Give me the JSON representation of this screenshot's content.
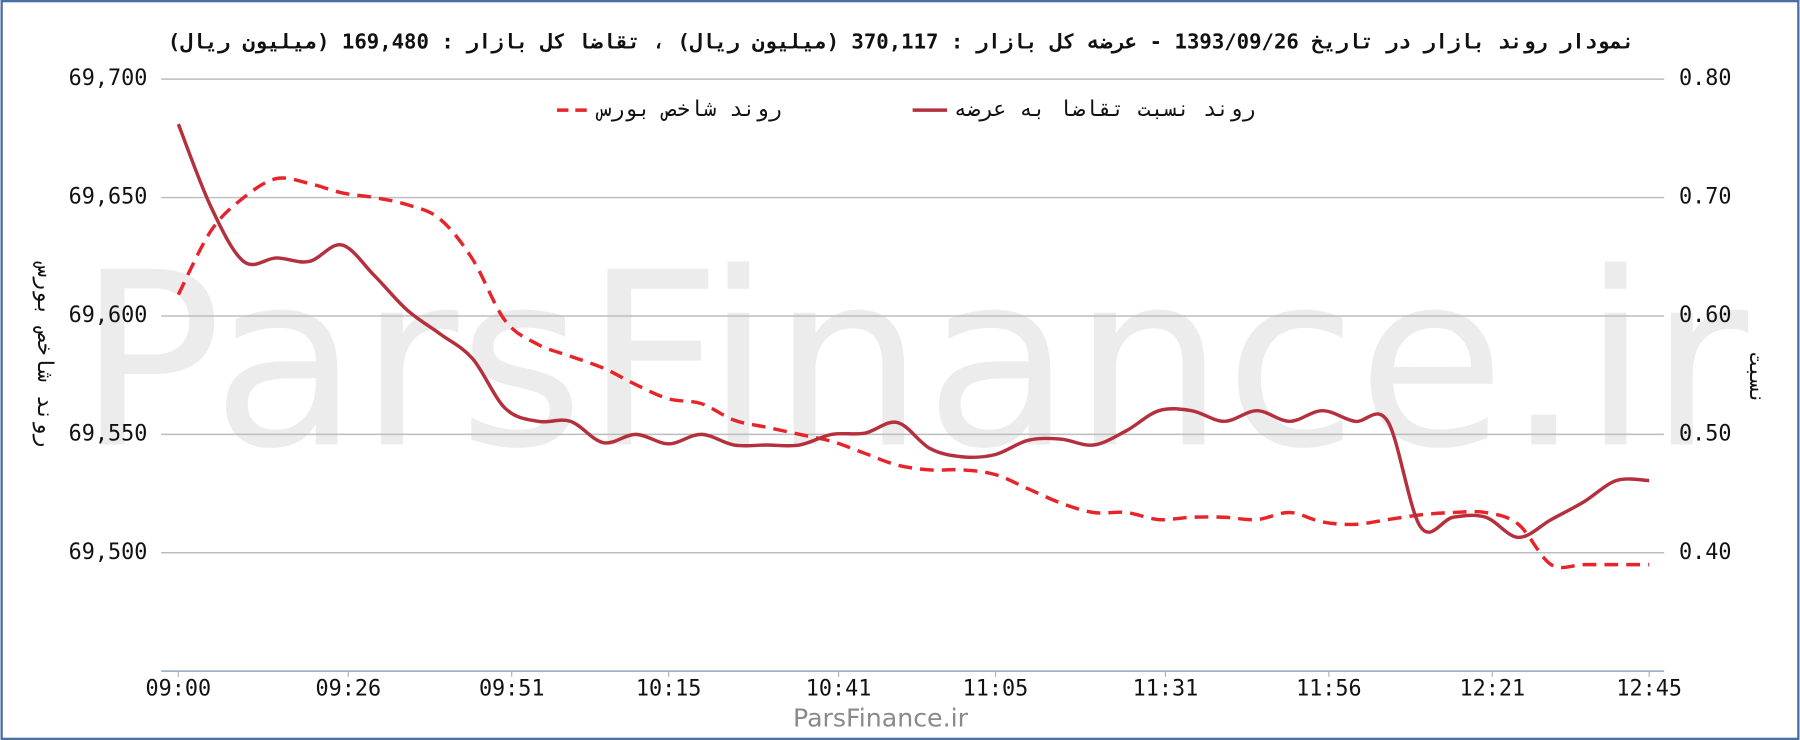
{
  "chart_data": {
    "type": "line",
    "title": "نمودار روند بازار در تاریخ 1393/09/26 - عرضه کل بازار : 370,117 (میلیون ریال) ، تقاضا کل بازار : 169,480 (میلیون ریال)",
    "y_label": "روند شاخص بورس",
    "y2_label": "نسبت",
    "watermark": "ParsFinance.ir",
    "footer": "ParsFinance.ir",
    "legend": "top",
    "x": [
      "09:00",
      "09:05",
      "09:10",
      "09:15",
      "09:20",
      "09:25",
      "09:30",
      "09:35",
      "09:40",
      "09:45",
      "09:50",
      "09:55",
      "10:00",
      "10:05",
      "10:10",
      "10:15",
      "10:20",
      "10:25",
      "10:30",
      "10:35",
      "10:40",
      "10:45",
      "10:50",
      "10:55",
      "11:00",
      "11:05",
      "11:10",
      "11:15",
      "11:20",
      "11:25",
      "11:30",
      "11:35",
      "11:40",
      "11:45",
      "11:50",
      "11:55",
      "12:00",
      "12:05",
      "12:10",
      "12:15",
      "12:20",
      "12:25",
      "12:30",
      "12:35",
      "12:40",
      "12:45"
    ],
    "xlim": [
      "09:00",
      "12:45"
    ],
    "xticks": [
      "09:00",
      "09:26",
      "09:51",
      "10:15",
      "10:41",
      "11:05",
      "11:31",
      "11:56",
      "12:21",
      "12:45"
    ],
    "ylim": [
      69450,
      69700
    ],
    "yticks": [
      {
        "value": 69500,
        "label": "69,500"
      },
      {
        "value": 69550,
        "label": "69,550"
      },
      {
        "value": 69600,
        "label": "69,600"
      },
      {
        "value": 69650,
        "label": "69,650"
      },
      {
        "value": 69700,
        "label": "69,700"
      }
    ],
    "y2lim": [
      0.3,
      0.8
    ],
    "y2ticks": [
      {
        "value": 0.4,
        "label": "0.40"
      },
      {
        "value": 0.5,
        "label": "0.50"
      },
      {
        "value": 0.6,
        "label": "0.60"
      },
      {
        "value": 0.7,
        "label": "0.70"
      },
      {
        "value": 0.8,
        "label": "0.80"
      }
    ],
    "grid": true,
    "series": [
      {
        "name": "روند شاخص بورس",
        "color": "#e8232a",
        "dashed": true,
        "values": [
          69609,
          69636,
          69650,
          69658,
          69656,
          69652,
          69650,
          69647,
          69641,
          69624,
          69598,
          69588,
          69583,
          69578,
          69571,
          69565,
          69563,
          69556,
          69553,
          69550,
          69547,
          69542,
          69537,
          69535,
          69535,
          69533,
          69527,
          69521,
          69517,
          69517,
          69514,
          69515,
          69515,
          69514,
          69517,
          69513,
          69512,
          69514,
          69516,
          69517,
          69517,
          69512,
          69495,
          69495,
          69495,
          69495
        ]
      },
      {
        "name": "روند نسبت تقاضا به عرضه",
        "color": "#b5303d",
        "axis": "y2",
        "values": [
          0.762,
          0.692,
          0.646,
          0.649,
          0.646,
          0.66,
          0.634,
          0.605,
          0.585,
          0.564,
          0.522,
          0.511,
          0.511,
          0.493,
          0.5,
          0.492,
          0.5,
          0.491,
          0.491,
          0.491,
          0.5,
          0.501,
          0.51,
          0.488,
          0.481,
          0.483,
          0.495,
          0.496,
          0.491,
          0.503,
          0.52,
          0.52,
          0.511,
          0.52,
          0.511,
          0.52,
          0.511,
          0.511,
          0.422,
          0.43,
          0.43,
          0.413,
          0.428,
          0.443,
          0.461,
          0.461
        ]
      }
    ]
  }
}
